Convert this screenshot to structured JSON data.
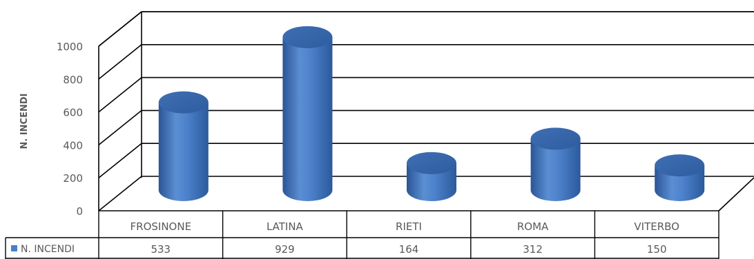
{
  "chart_data": {
    "type": "bar",
    "style": "3d-cylinder",
    "categories": [
      "FROSINONE",
      "LATINA",
      "RIETI",
      "ROMA",
      "VITERBO"
    ],
    "series": [
      {
        "name": "N. INCENDI",
        "values": [
          533,
          929,
          164,
          312,
          150
        ],
        "color": "#4a7ec7"
      }
    ],
    "ylabel": "N. INCENDI",
    "ylim": [
      0,
      1000
    ],
    "yticks": [
      0,
      200,
      400,
      600,
      800,
      1000
    ],
    "grid": true,
    "legend": "data-table",
    "data_table": true
  }
}
